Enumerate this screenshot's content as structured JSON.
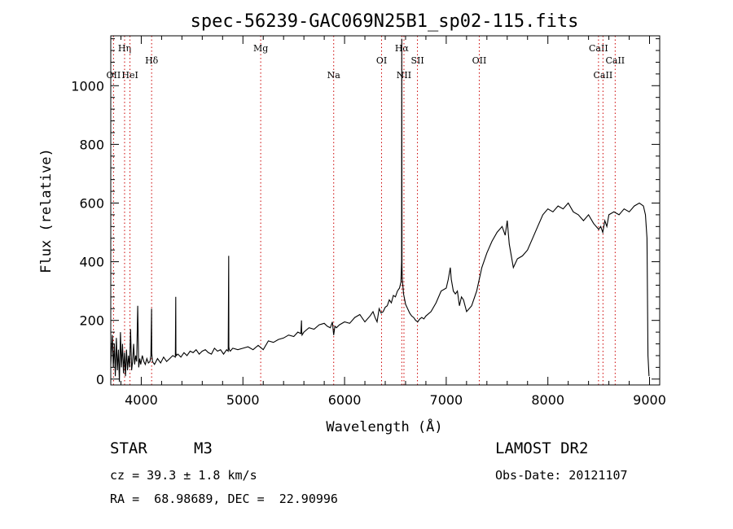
{
  "chart_data": {
    "type": "line",
    "title": "spec-56239-GAC069N25B1_sp02-115.fits",
    "xlabel": "Wavelength (Å)",
    "ylabel": "Flux (relative)",
    "xlim": [
      3700,
      9100
    ],
    "ylim": [
      -20,
      1170
    ],
    "x_ticks": [
      4000,
      5000,
      6000,
      7000,
      8000,
      9000
    ],
    "y_ticks": [
      0,
      200,
      400,
      600,
      800,
      1000
    ],
    "grid": false,
    "line_color": "#000000",
    "marker_line_color": "#cc0000",
    "spectral_lines": [
      {
        "label": "Hη",
        "x": 3836,
        "row": 0
      },
      {
        "label": "OII",
        "x": 3727,
        "row": 2
      },
      {
        "label": "HeI",
        "x": 3889,
        "row": 2
      },
      {
        "label": "Hδ",
        "x": 4102,
        "row": 1
      },
      {
        "label": "Mg",
        "x": 5175,
        "row": 0
      },
      {
        "label": "Na",
        "x": 5893,
        "row": 2
      },
      {
        "label": "OI",
        "x": 6364,
        "row": 1
      },
      {
        "label": "Hα",
        "x": 6563,
        "row": 0
      },
      {
        "label": "NII",
        "x": 6584,
        "row": 2
      },
      {
        "label": "SII",
        "x": 6717,
        "row": 1
      },
      {
        "label": "OII",
        "x": 7325,
        "row": 1
      },
      {
        "label": "CaII",
        "x": 8498,
        "row": 0
      },
      {
        "label": "CaII",
        "x": 8542,
        "row": 2
      },
      {
        "label": "CaII",
        "x": 8662,
        "row": 1
      }
    ],
    "series": [
      {
        "x": [
          3700,
          3715,
          3725,
          3735,
          3745,
          3755,
          3765,
          3775,
          3785,
          3795,
          3805,
          3815,
          3825,
          3835,
          3845,
          3855,
          3865,
          3875,
          3885,
          3895,
          3905,
          3915,
          3925,
          3935,
          3945,
          3955,
          3965,
          3975,
          3985,
          3995,
          4010,
          4025,
          4040,
          4055,
          4070,
          4085,
          4095,
          4101,
          4103,
          4110,
          4130,
          4160,
          4190,
          4220,
          4250,
          4280,
          4310,
          4335,
          4339,
          4341,
          4345,
          4360,
          4390,
          4420,
          4450,
          4480,
          4510,
          4540,
          4570,
          4600,
          4630,
          4660,
          4690,
          4720,
          4750,
          4780,
          4810,
          4840,
          4855,
          4860,
          4862,
          4866,
          4875,
          4900,
          4950,
          5000,
          5050,
          5100,
          5150,
          5200,
          5250,
          5300,
          5350,
          5400,
          5450,
          5500,
          5540,
          5570,
          5576,
          5578,
          5582,
          5600,
          5650,
          5700,
          5750,
          5800,
          5830,
          5860,
          5880,
          5893,
          5905,
          5920,
          5950,
          6000,
          6050,
          6100,
          6150,
          6200,
          6250,
          6280,
          6300,
          6320,
          6340,
          6360,
          6380,
          6400,
          6420,
          6440,
          6460,
          6480,
          6500,
          6520,
          6540,
          6555,
          6561,
          6563,
          6565,
          6568,
          6580,
          6600,
          6620,
          6640,
          6660,
          6680,
          6700,
          6720,
          6740,
          6760,
          6780,
          6800,
          6850,
          6900,
          6950,
          7000,
          7020,
          7040,
          7050,
          7070,
          7090,
          7110,
          7130,
          7150,
          7170,
          7200,
          7250,
          7300,
          7350,
          7400,
          7450,
          7500,
          7550,
          7580,
          7600,
          7620,
          7640,
          7660,
          7680,
          7700,
          7750,
          7800,
          7850,
          7900,
          7950,
          8000,
          8050,
          8100,
          8150,
          8200,
          8250,
          8300,
          8350,
          8400,
          8450,
          8500,
          8520,
          8540,
          8560,
          8580,
          8600,
          8650,
          8700,
          8750,
          8800,
          8850,
          8900,
          8940,
          8960,
          8975,
          8985,
          8995
        ],
        "y": [
          50,
          150,
          40,
          120,
          10,
          140,
          30,
          100,
          -10,
          160,
          40,
          120,
          20,
          90,
          10,
          100,
          30,
          80,
          40,
          170,
          30,
          60,
          120,
          50,
          80,
          60,
          250,
          40,
          70,
          50,
          80,
          60,
          50,
          70,
          55,
          60,
          80,
          240,
          90,
          60,
          50,
          70,
          55,
          75,
          60,
          70,
          80,
          75,
          280,
          90,
          80,
          85,
          75,
          90,
          80,
          95,
          90,
          100,
          85,
          95,
          100,
          90,
          85,
          105,
          95,
          100,
          85,
          100,
          95,
          420,
          110,
          100,
          95,
          105,
          100,
          105,
          110,
          100,
          115,
          100,
          130,
          125,
          135,
          140,
          150,
          145,
          160,
          155,
          200,
          165,
          150,
          160,
          175,
          170,
          185,
          190,
          180,
          175,
          195,
          150,
          180,
          175,
          185,
          195,
          190,
          210,
          220,
          195,
          215,
          230,
          210,
          195,
          240,
          225,
          230,
          245,
          250,
          270,
          260,
          285,
          280,
          300,
          310,
          330,
          400,
          1160,
          380,
          340,
          290,
          255,
          240,
          225,
          215,
          210,
          200,
          195,
          205,
          210,
          205,
          215,
          230,
          260,
          300,
          310,
          340,
          380,
          340,
          300,
          290,
          300,
          250,
          280,
          270,
          230,
          250,
          300,
          380,
          430,
          470,
          500,
          520,
          490,
          540,
          460,
          420,
          380,
          395,
          410,
          420,
          440,
          480,
          520,
          560,
          580,
          570,
          590,
          580,
          600,
          570,
          560,
          540,
          560,
          530,
          510,
          520,
          500,
          540,
          520,
          560,
          570,
          560,
          580,
          570,
          590,
          600,
          590,
          560,
          480,
          80,
          10
        ]
      }
    ],
    "annotations": {
      "object_class": "STAR",
      "subclass": "M3",
      "survey": "LAMOST DR2",
      "redshift": "cz = 39.3 ± 1.8 km/s",
      "obs_date": "Obs-Date: 20121107",
      "coords": "RA =  68.98689, DEC =  22.90996"
    }
  }
}
